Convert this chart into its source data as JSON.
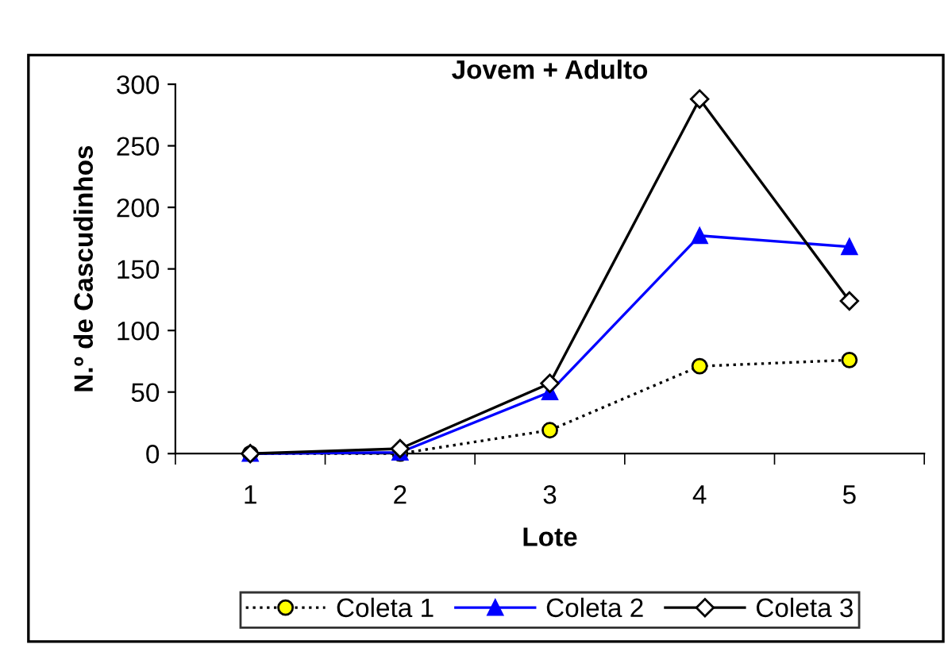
{
  "chart_data": {
    "type": "line",
    "title": "Jovem + Adulto",
    "xlabel": "Lote",
    "ylabel": "N.º de Cascudinhos",
    "categories": [
      "1",
      "2",
      "3",
      "4",
      "5"
    ],
    "series": [
      {
        "name": "Coleta 1",
        "color": "#ffff00",
        "marker": "circle",
        "line_style": "dotted",
        "values": [
          0,
          0,
          19,
          71,
          76
        ]
      },
      {
        "name": "Coleta 2",
        "color": "#0000ff",
        "marker": "triangle",
        "line_style": "solid",
        "values": [
          0,
          1,
          50,
          177,
          168
        ]
      },
      {
        "name": "Coleta 3",
        "color": "#000000",
        "marker": "diamond",
        "line_style": "solid",
        "values": [
          0,
          4,
          57,
          288,
          124
        ]
      }
    ],
    "ylim": [
      0,
      300
    ],
    "yticks": [
      0,
      50,
      100,
      150,
      200,
      250,
      300
    ],
    "grid": false,
    "legend": "bottom"
  }
}
